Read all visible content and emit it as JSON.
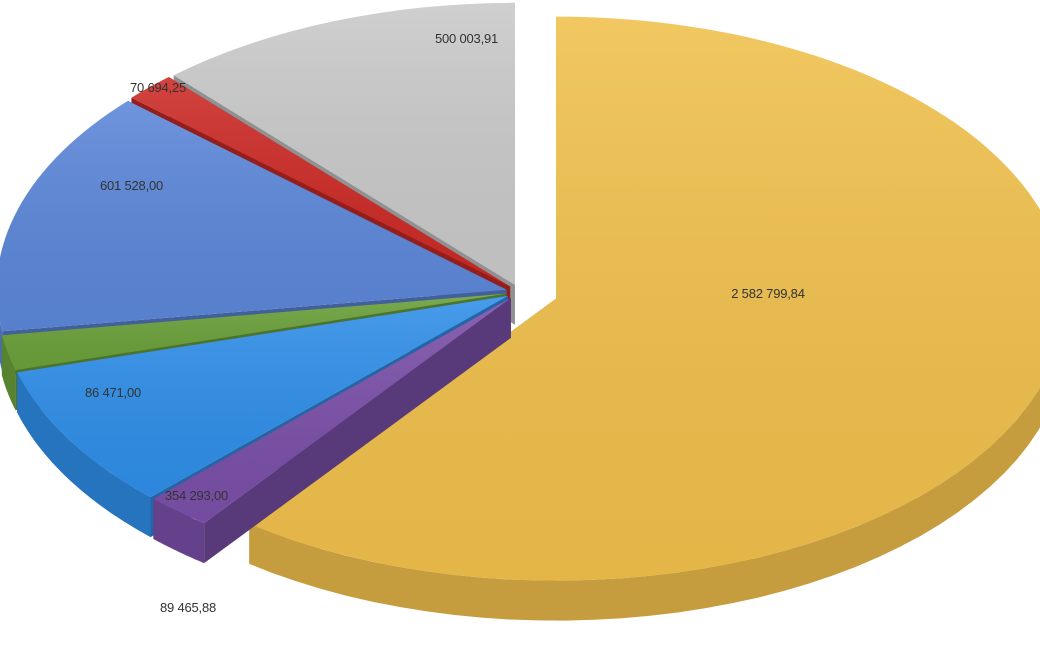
{
  "chart_data": {
    "type": "pie",
    "style": "3d-exploded",
    "slices": [
      {
        "label": "2 582 799,84",
        "value": 2582799.84,
        "color": "#f0c04c"
      },
      {
        "label": "89 465,88",
        "value": 89465.88,
        "color": "#7a4fa8"
      },
      {
        "label": "354 293,00",
        "value": 354293.0,
        "color": "#2f8ee8"
      },
      {
        "label": "86 471,00",
        "value": 86471.0,
        "color": "#6aa03a"
      },
      {
        "label": "601 528,00",
        "value": 601528.0,
        "color": "#5b86d8"
      },
      {
        "label": "70 694,25",
        "value": 70694.25,
        "color": "#cc2a26"
      },
      {
        "label": "500 003,91",
        "value": 500003.91,
        "color": "#c9c9c9"
      }
    ]
  }
}
